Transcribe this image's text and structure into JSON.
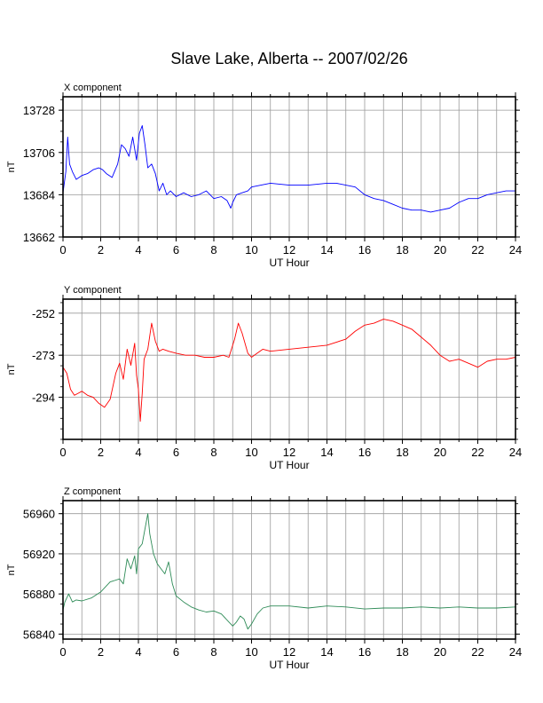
{
  "title": "Slave Lake, Alberta -- 2007/02/26",
  "chart_data": [
    {
      "type": "line",
      "title": "X component",
      "xlabel": "UT Hour",
      "ylabel": "nT",
      "xlim": [
        0,
        24
      ],
      "ylim": [
        13662,
        13735
      ],
      "xticks": [
        0,
        2,
        4,
        6,
        8,
        10,
        12,
        14,
        16,
        18,
        20,
        22,
        24
      ],
      "yticks": [
        13662,
        13684,
        13706,
        13728
      ],
      "grid": true,
      "color": "#0000ff",
      "x": [
        0,
        0.15,
        0.25,
        0.35,
        0.5,
        0.7,
        1.0,
        1.3,
        1.6,
        1.9,
        2.1,
        2.3,
        2.6,
        2.9,
        3.1,
        3.3,
        3.5,
        3.7,
        3.9,
        4.05,
        4.2,
        4.35,
        4.5,
        4.7,
        4.9,
        5.1,
        5.3,
        5.5,
        5.7,
        6.0,
        6.4,
        6.8,
        7.2,
        7.6,
        8.0,
        8.4,
        8.7,
        8.9,
        9.0,
        9.2,
        9.5,
        9.8,
        10.0,
        10.5,
        11,
        12,
        13,
        14,
        14.5,
        15,
        15.5,
        16,
        16.5,
        17,
        17.5,
        18,
        18.5,
        19,
        19.5,
        20,
        20.5,
        21,
        21.5,
        22,
        22.5,
        23,
        23.5,
        24
      ],
      "y": [
        13685,
        13696,
        13714,
        13700,
        13696,
        13692,
        13694,
        13695,
        13697,
        13698,
        13697,
        13695,
        13693,
        13700,
        13710,
        13708,
        13704,
        13714,
        13702,
        13716,
        13720,
        13710,
        13698,
        13700,
        13695,
        13686,
        13690,
        13684,
        13686,
        13683,
        13685,
        13683,
        13684,
        13686,
        13682,
        13683,
        13681,
        13677,
        13680,
        13684,
        13685,
        13686,
        13688,
        13689,
        13690,
        13689,
        13689,
        13690,
        13690,
        13689,
        13688,
        13684,
        13682,
        13681,
        13679,
        13677,
        13676,
        13676,
        13675,
        13676,
        13677,
        13680,
        13682,
        13682,
        13684,
        13685,
        13686,
        13686
      ]
    },
    {
      "type": "line",
      "title": "Y component",
      "xlabel": "UT Hour",
      "ylabel": "nT",
      "xlim": [
        0,
        24
      ],
      "ylim": [
        -315,
        -245
      ],
      "xticks": [
        0,
        2,
        4,
        6,
        8,
        10,
        12,
        14,
        16,
        18,
        20,
        22,
        24
      ],
      "yticks": [
        -294,
        -273,
        -252
      ],
      "grid": true,
      "color": "#ff0000",
      "x": [
        0,
        0.2,
        0.4,
        0.6,
        0.8,
        1.0,
        1.3,
        1.6,
        1.9,
        2.2,
        2.5,
        2.8,
        3.0,
        3.2,
        3.4,
        3.6,
        3.8,
        3.9,
        4.0,
        4.1,
        4.2,
        4.3,
        4.5,
        4.7,
        4.9,
        5.1,
        5.3,
        5.6,
        6.0,
        6.5,
        7.0,
        7.5,
        8.0,
        8.5,
        8.8,
        9.1,
        9.3,
        9.5,
        9.8,
        10.0,
        10.3,
        10.6,
        11,
        12,
        13,
        14,
        15,
        15.5,
        16,
        16.5,
        17,
        17.5,
        18,
        18.5,
        19,
        19.5,
        20,
        20.5,
        21,
        21.5,
        22,
        22.5,
        23,
        23.5,
        24
      ],
      "y": [
        -279,
        -282,
        -290,
        -293,
        -292,
        -291,
        -293,
        -294,
        -297,
        -299,
        -295,
        -282,
        -277,
        -285,
        -270,
        -278,
        -267,
        -283,
        -290,
        -306,
        -292,
        -275,
        -270,
        -257,
        -266,
        -271,
        -270,
        -271,
        -272,
        -273,
        -273,
        -274,
        -274,
        -273,
        -274,
        -265,
        -257,
        -262,
        -272,
        -274,
        -272,
        -270,
        -271,
        -270,
        -269,
        -268,
        -265,
        -261,
        -258,
        -257,
        -255,
        -256,
        -258,
        -260,
        -264,
        -268,
        -273,
        -276,
        -275,
        -277,
        -279,
        -276,
        -275,
        -275,
        -274
      ]
    },
    {
      "type": "line",
      "title": "Z component",
      "xlabel": "UT Hour",
      "ylabel": "nT",
      "xlim": [
        0,
        24
      ],
      "ylim": [
        56835,
        56973
      ],
      "xticks": [
        0,
        2,
        4,
        6,
        8,
        10,
        12,
        14,
        16,
        18,
        20,
        22,
        24
      ],
      "yticks": [
        56840,
        56880,
        56920,
        56960
      ],
      "grid": true,
      "color": "#2e8b57",
      "x": [
        0,
        0.1,
        0.3,
        0.5,
        0.7,
        1.0,
        1.5,
        2.0,
        2.5,
        3.0,
        3.2,
        3.4,
        3.6,
        3.8,
        3.9,
        4.0,
        4.2,
        4.4,
        4.5,
        4.6,
        4.8,
        5.0,
        5.2,
        5.4,
        5.6,
        5.8,
        6.0,
        6.4,
        6.8,
        7.2,
        7.6,
        8.0,
        8.4,
        8.8,
        9.0,
        9.2,
        9.4,
        9.6,
        9.8,
        10.0,
        10.3,
        10.6,
        11,
        12,
        13,
        14,
        15,
        16,
        17,
        18,
        19,
        20,
        21,
        22,
        23,
        24
      ],
      "y": [
        56864,
        56872,
        56880,
        56872,
        56874,
        56873,
        56876,
        56882,
        56892,
        56895,
        56890,
        56915,
        56905,
        56918,
        56900,
        56925,
        56930,
        56950,
        56960,
        56940,
        56920,
        56910,
        56905,
        56900,
        56912,
        56890,
        56878,
        56872,
        56867,
        56864,
        56862,
        56863,
        56860,
        56852,
        56848,
        56852,
        56858,
        56855,
        56845,
        56850,
        56860,
        56866,
        56868,
        56868,
        56866,
        56868,
        56867,
        56865,
        56866,
        56866,
        56867,
        56866,
        56867,
        56866,
        56866,
        56867
      ]
    }
  ]
}
